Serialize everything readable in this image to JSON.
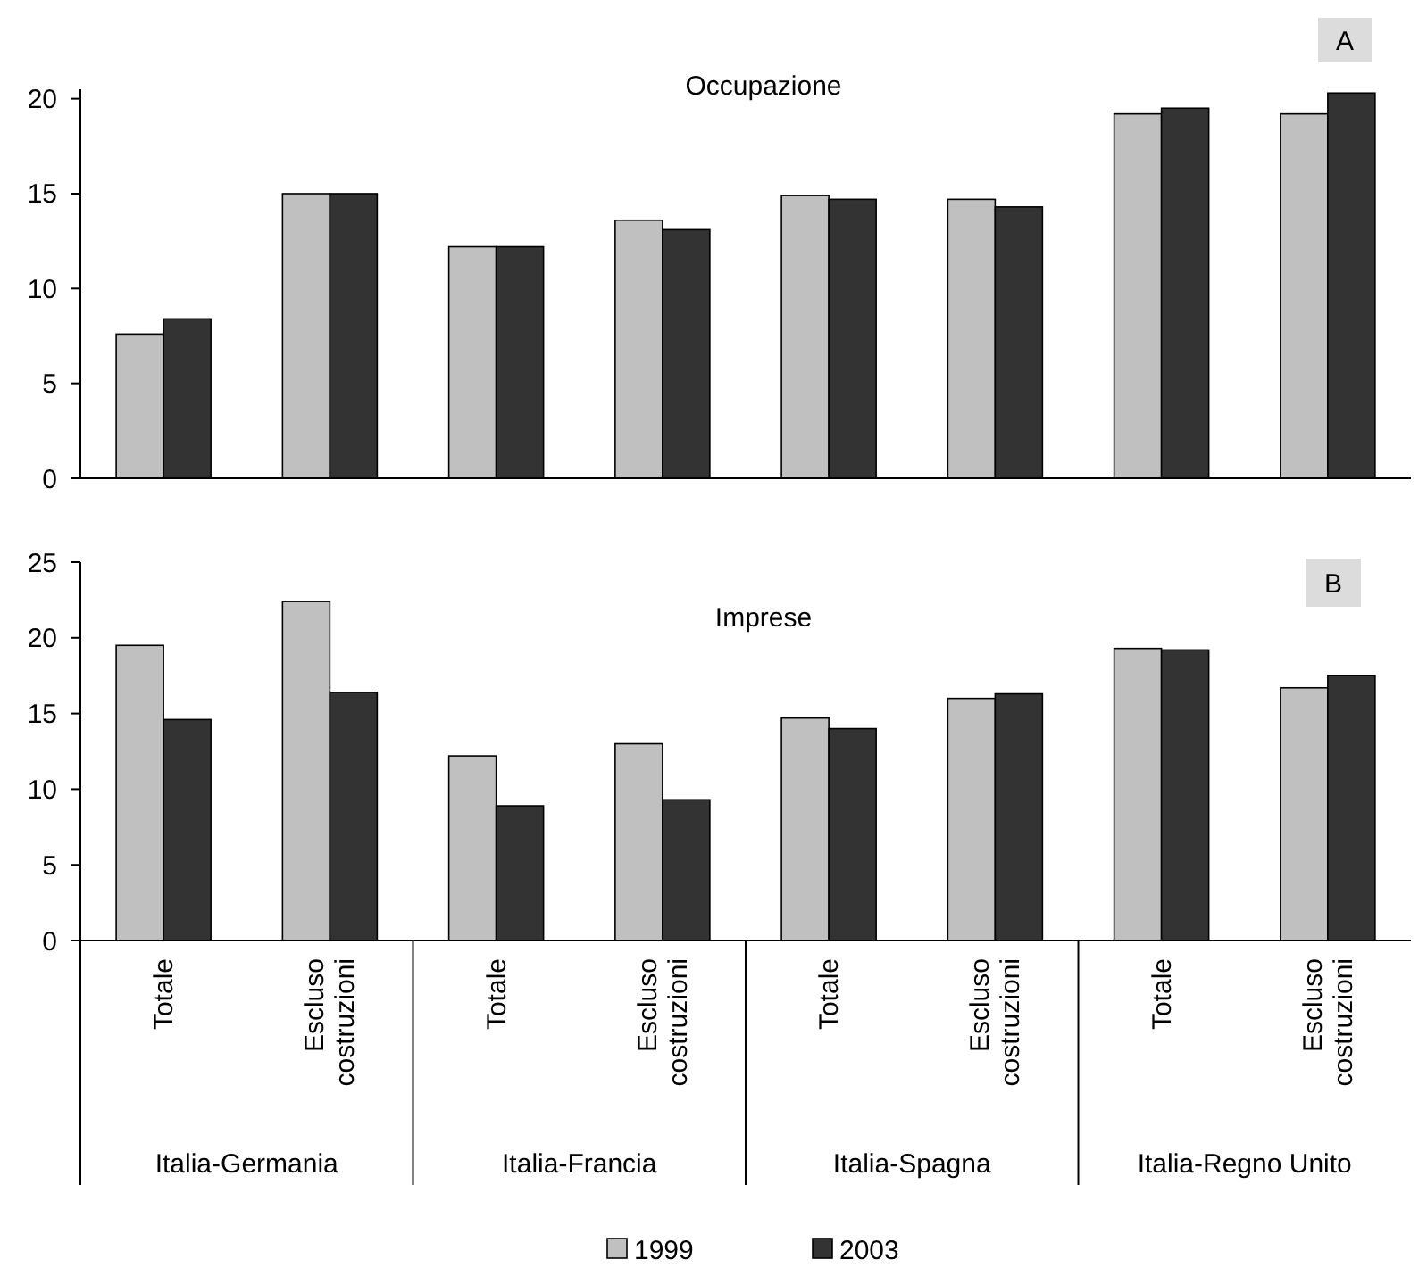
{
  "chart_data": [
    {
      "type": "bar",
      "title": "Occupazione",
      "annotations": [
        "A"
      ],
      "categories": [
        null,
        null,
        null,
        null,
        null,
        null,
        null,
        null
      ],
      "series": [
        {
          "color": "#c0c0c0",
          "values": [
            7.6,
            15.0,
            12.2,
            13.6,
            14.9,
            14.7,
            19.2,
            19.2
          ]
        },
        {
          "color": "#333333",
          "values": [
            8.4,
            15.0,
            12.2,
            13.1,
            14.7,
            14.3,
            19.5,
            20.3
          ]
        }
      ],
      "ylim": [
        0,
        20.5
      ],
      "yticks": [
        0,
        5,
        10,
        15,
        20
      ],
      "tick_labels": "y"
    },
    {
      "type": "bar",
      "title": "Imprese",
      "annotations": [
        "B",
        "Italia-Germania",
        "Italia-Francia",
        "Italia-Spagna",
        "Italia-Regno Unito"
      ],
      "categories": [
        "Totale",
        "Escluso costruzioni",
        "Totale",
        "Escluso costruzioni",
        "Totale",
        "Escluso costruzioni",
        "Totale",
        "Escluso costruzioni"
      ],
      "series": [
        {
          "name": "1999",
          "color": "#c0c0c0",
          "values": [
            19.5,
            22.4,
            12.2,
            13.0,
            14.7,
            16.0,
            19.3,
            16.7
          ]
        },
        {
          "name": "2003",
          "color": "#333333",
          "values": [
            14.6,
            16.4,
            8.9,
            9.3,
            14.0,
            16.3,
            19.2,
            17.5
          ]
        }
      ],
      "ylim": [
        0,
        25
      ],
      "yticks": [
        0,
        5,
        10,
        15,
        20,
        25
      ],
      "legend": "bottom"
    }
  ]
}
